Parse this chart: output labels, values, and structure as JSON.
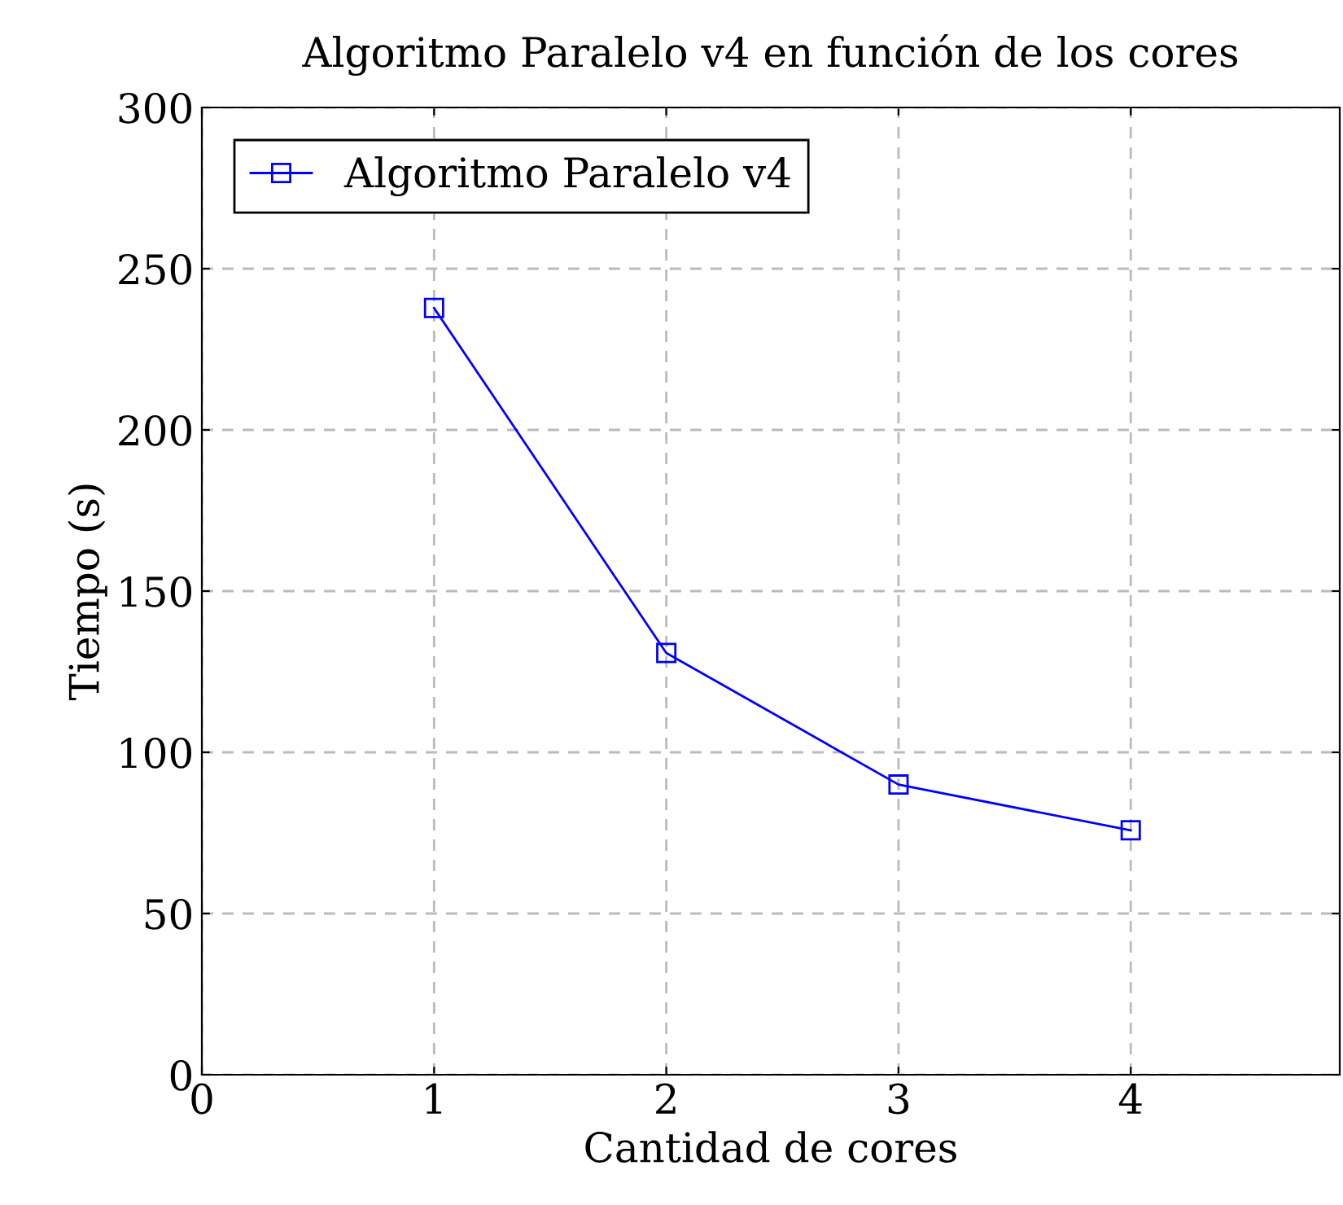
{
  "chart_data": {
    "type": "line",
    "title": "Algoritmo Paralelo v4 en función de los cores",
    "xlabel": "Cantidad de cores",
    "ylabel": "Tiempo (s)",
    "x": [
      1,
      2,
      3,
      4
    ],
    "series": [
      {
        "name": "Algoritmo Paralelo v4",
        "color": "#0000ff",
        "values": [
          237.8,
          130.8,
          90.0,
          75.8
        ]
      }
    ],
    "xlim": [
      0,
      4.9
    ],
    "xticks": [
      0,
      1,
      2,
      3,
      4
    ],
    "ylim": [
      0,
      300
    ],
    "yticks": [
      0,
      50,
      100,
      150,
      200,
      250,
      300
    ],
    "grid": true,
    "legend": "top left",
    "marker": "square",
    "line_style": "solid"
  }
}
